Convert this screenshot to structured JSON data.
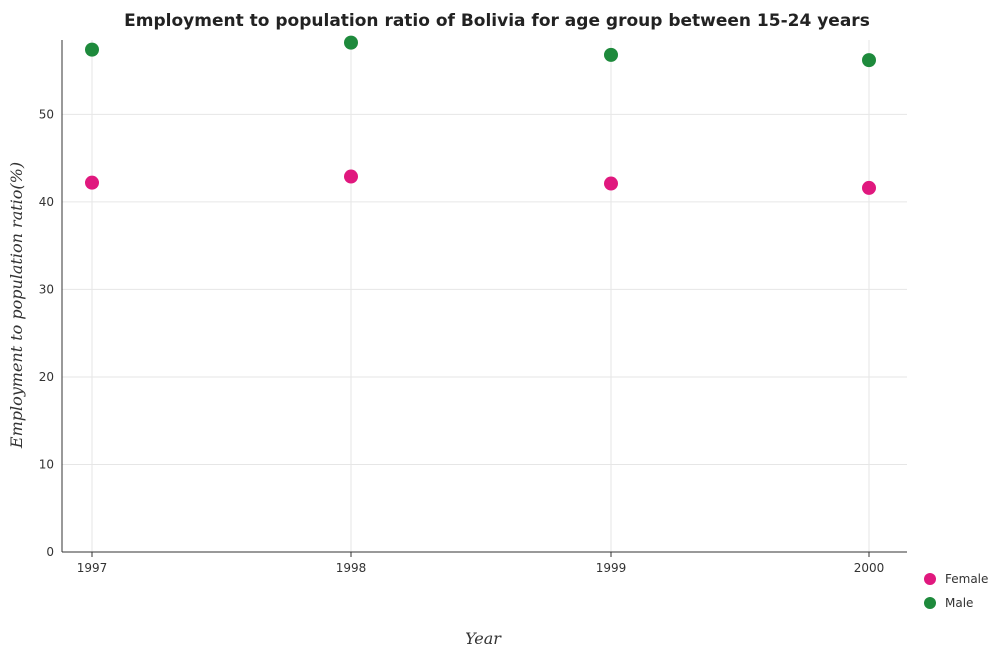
{
  "chart_data": {
    "type": "scatter",
    "title": "Employment to population ratio of Bolivia for age group between 15-24 years",
    "xlabel": "Year",
    "ylabel": "Employment to population ratio(%)",
    "categories": [
      "1997",
      "1998",
      "1999",
      "2000"
    ],
    "ylim": [
      0,
      58.5
    ],
    "yticks": [
      0,
      10,
      20,
      30,
      40,
      50
    ],
    "grid": true,
    "legend_position": "bottom-right",
    "series": [
      {
        "name": "Female",
        "color": "#e0187e",
        "values": [
          42.2,
          42.9,
          42.1,
          41.6
        ]
      },
      {
        "name": "Male",
        "color": "#1e8a3c",
        "values": [
          57.4,
          58.2,
          56.8,
          56.2
        ]
      }
    ]
  }
}
